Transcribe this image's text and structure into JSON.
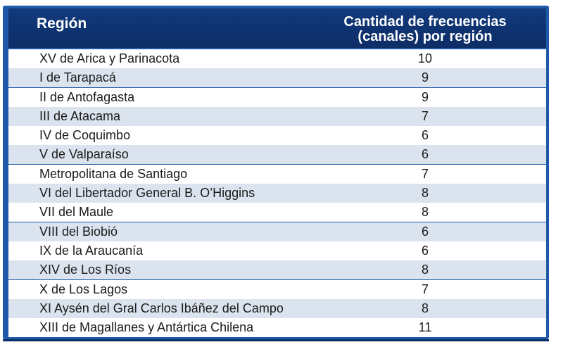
{
  "header": {
    "region_label": "Región",
    "count_label_line1": "Cantidad de frecuencias",
    "count_label_line2": "(canales) por región"
  },
  "rows": [
    {
      "region": "XV de Arica y Parinacota",
      "count": "10"
    },
    {
      "region": "I de Tarapacá",
      "count": "9"
    },
    {
      "region": "II de Antofagasta",
      "count": "9"
    },
    {
      "region": "III de Atacama",
      "count": "7"
    },
    {
      "region": "IV de Coquimbo",
      "count": "6"
    },
    {
      "region": "V de Valparaíso",
      "count": "6"
    },
    {
      "region": "Metropolitana de Santiago",
      "count": "7"
    },
    {
      "region": "VI del Libertador General B. O’Higgins",
      "count": "8"
    },
    {
      "region": "VII del Maule",
      "count": "8"
    },
    {
      "region": "VIII del Biobió",
      "count": "6"
    },
    {
      "region": "IX de la Araucanía",
      "count": "6"
    },
    {
      "region": "XIV de Los Ríos",
      "count": "8"
    },
    {
      "region": "X de Los Lagos",
      "count": "7"
    },
    {
      "region": "XI Aysén del Gral Carlos Ibáñez del Campo",
      "count": "8"
    },
    {
      "region": "XIII de Magallanes y Antártica Chilena",
      "count": "11"
    }
  ],
  "colors": {
    "frame": "#1e5aa8",
    "header": "#123a7d",
    "stripe": "#dbe3ee"
  }
}
